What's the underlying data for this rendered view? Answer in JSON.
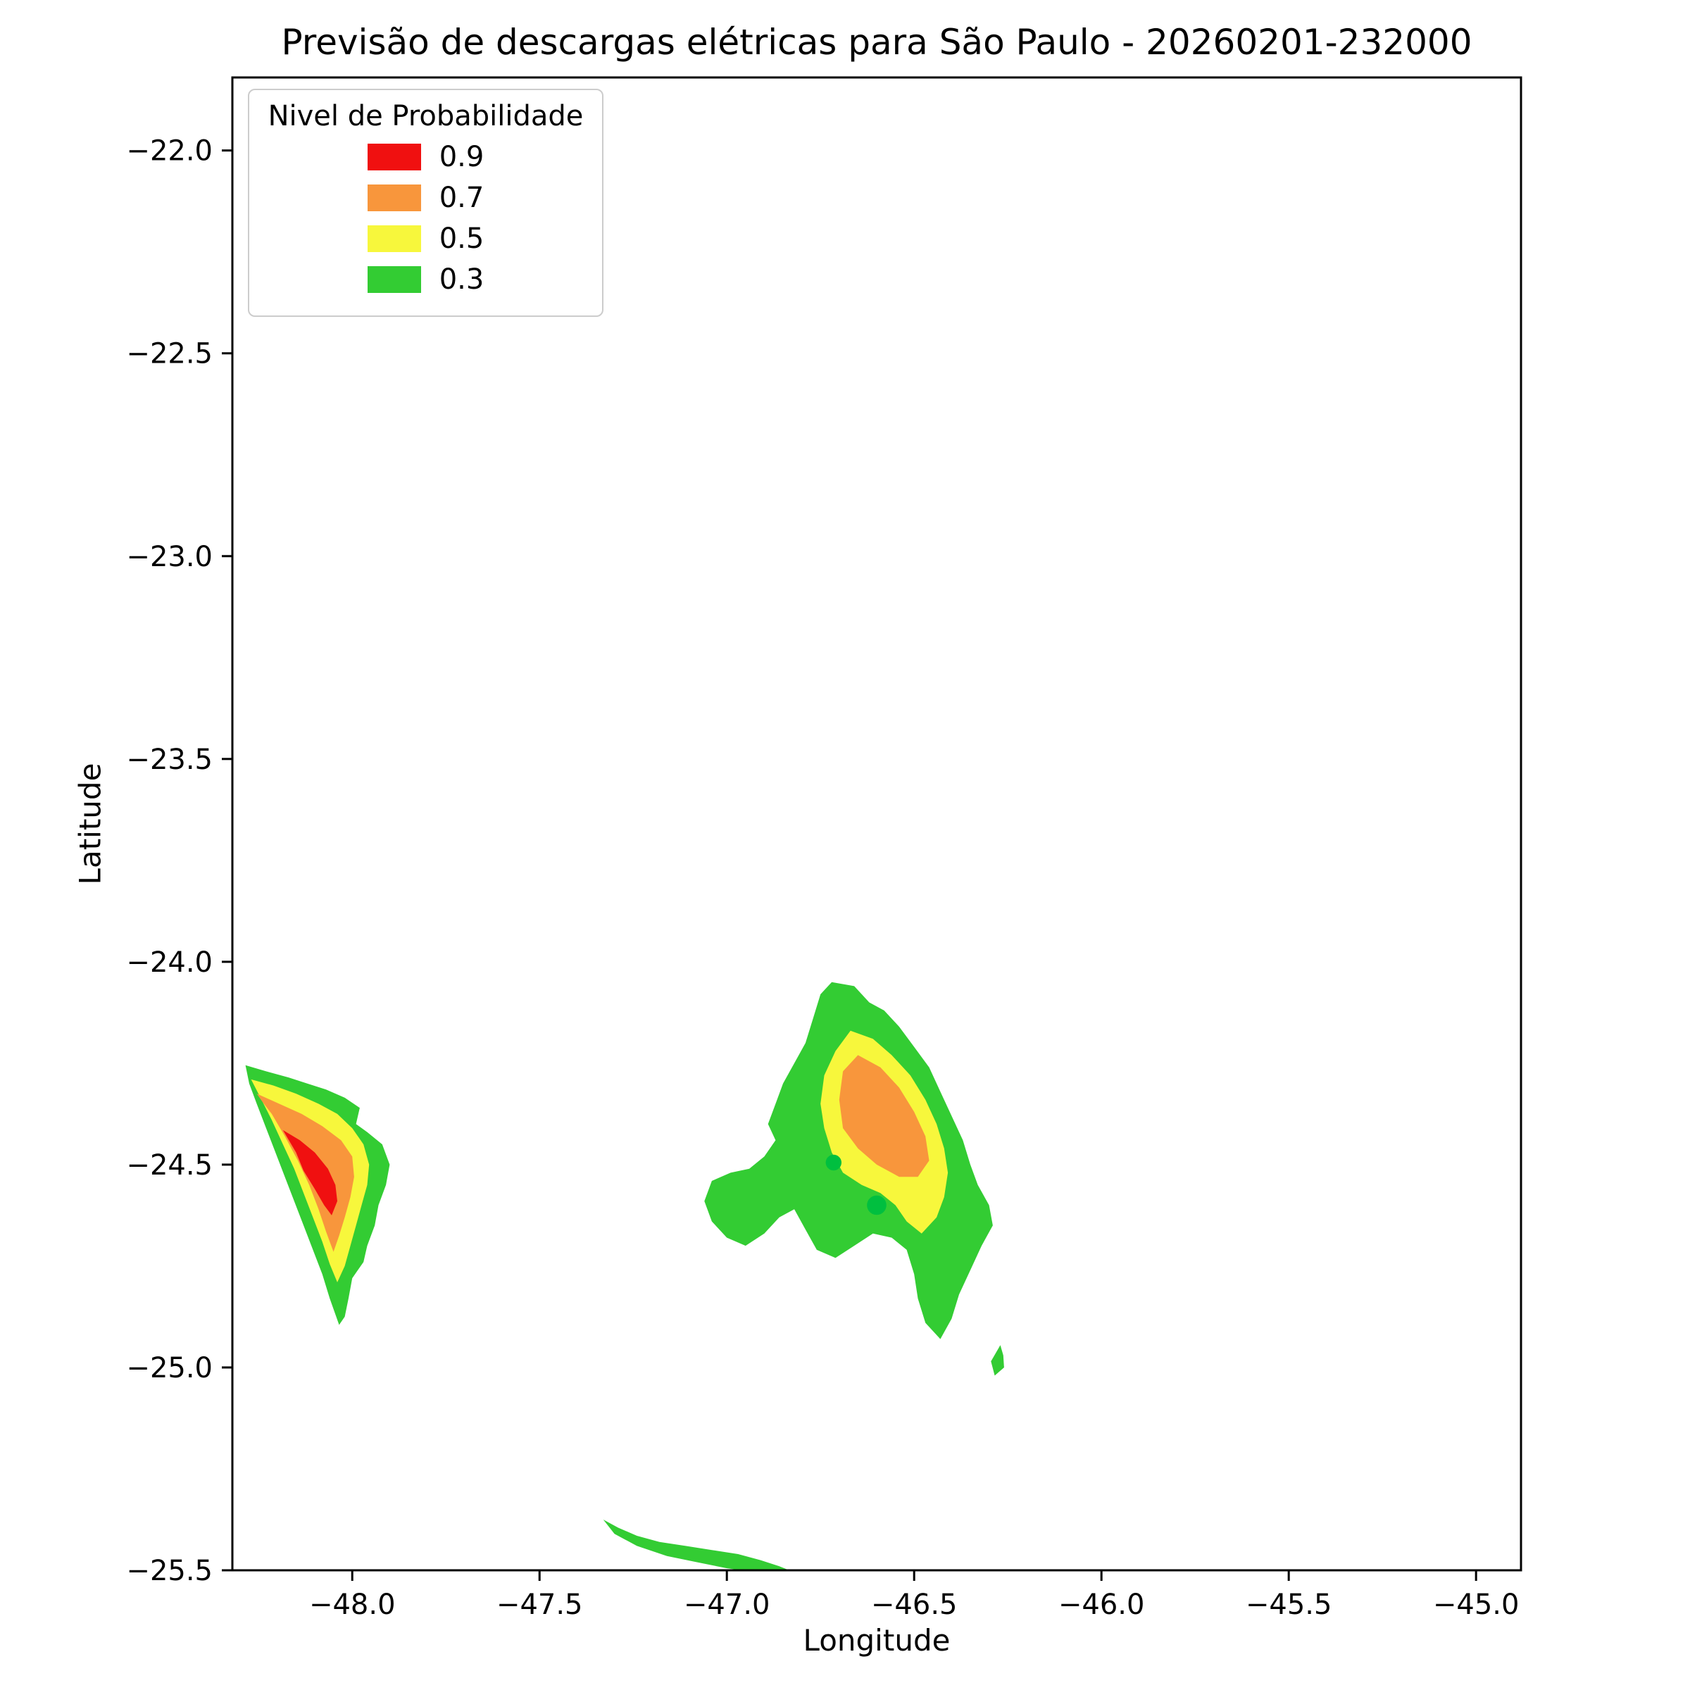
{
  "figure": {
    "title": "Previsão de descargas elétricas para São Paulo - 20260201-232000",
    "xlabel": "Longitude",
    "ylabel": "Latitude"
  },
  "legend": {
    "title": "Nivel de Probabilidade",
    "entries": [
      {
        "label": "0.9",
        "color": "#f01010"
      },
      {
        "label": "0.7",
        "color": "#f8963c"
      },
      {
        "label": "0.5",
        "color": "#f7f73c"
      },
      {
        "label": "0.3",
        "color": "#33cc33"
      }
    ]
  },
  "chart_data": {
    "type": "area",
    "subtype": "filled-contour-probability-map",
    "title": "Previsão de descargas elétricas para São Paulo - 20260201-232000",
    "xlabel": "Longitude",
    "ylabel": "Latitude",
    "xlim": [
      -48.32,
      -44.88
    ],
    "ylim": [
      -25.5,
      -21.82
    ],
    "xticks": [
      -48.0,
      -47.5,
      -47.0,
      -46.5,
      -46.0,
      -45.5,
      -45.0
    ],
    "yticks": [
      -22.0,
      -22.5,
      -23.0,
      -23.5,
      -24.0,
      -24.5,
      -25.0,
      -25.5
    ],
    "grid": false,
    "legend_position": "upper left",
    "levels": [
      0.3,
      0.5,
      0.7,
      0.9
    ],
    "contours": [
      {
        "level": 0.3,
        "color": "#33cc33",
        "polygons": [
          [
            [
              -48.285,
              -24.255
            ],
            [
              -48.23,
              -24.27
            ],
            [
              -48.17,
              -24.285
            ],
            [
              -48.12,
              -24.3
            ],
            [
              -48.07,
              -24.315
            ],
            [
              -48.02,
              -24.335
            ],
            [
              -47.98,
              -24.36
            ],
            [
              -47.99,
              -24.4
            ],
            [
              -47.96,
              -24.42
            ],
            [
              -47.92,
              -24.45
            ],
            [
              -47.9,
              -24.5
            ],
            [
              -47.91,
              -24.55
            ],
            [
              -47.93,
              -24.6
            ],
            [
              -47.94,
              -24.65
            ],
            [
              -47.96,
              -24.7
            ],
            [
              -47.97,
              -24.74
            ],
            [
              -48.0,
              -24.78
            ],
            [
              -48.01,
              -24.83
            ],
            [
              -48.02,
              -24.875
            ],
            [
              -48.035,
              -24.895
            ],
            [
              -48.06,
              -24.83
            ],
            [
              -48.08,
              -24.77
            ],
            [
              -48.105,
              -24.71
            ],
            [
              -48.13,
              -24.65
            ],
            [
              -48.155,
              -24.59
            ],
            [
              -48.18,
              -24.53
            ],
            [
              -48.205,
              -24.47
            ],
            [
              -48.23,
              -24.41
            ],
            [
              -48.255,
              -24.35
            ],
            [
              -48.275,
              -24.3
            ]
          ],
          [
            [
              -46.72,
              -24.05
            ],
            [
              -46.66,
              -24.06
            ],
            [
              -46.62,
              -24.1
            ],
            [
              -46.58,
              -24.12
            ],
            [
              -46.54,
              -24.16
            ],
            [
              -46.5,
              -24.21
            ],
            [
              -46.46,
              -24.26
            ],
            [
              -46.43,
              -24.32
            ],
            [
              -46.4,
              -24.38
            ],
            [
              -46.37,
              -24.44
            ],
            [
              -46.35,
              -24.5
            ],
            [
              -46.33,
              -24.55
            ],
            [
              -46.3,
              -24.6
            ],
            [
              -46.29,
              -24.65
            ],
            [
              -46.32,
              -24.7
            ],
            [
              -46.35,
              -24.76
            ],
            [
              -46.38,
              -24.82
            ],
            [
              -46.4,
              -24.88
            ],
            [
              -46.43,
              -24.93
            ],
            [
              -46.47,
              -24.89
            ],
            [
              -46.49,
              -24.83
            ],
            [
              -46.5,
              -24.77
            ],
            [
              -46.52,
              -24.71
            ],
            [
              -46.56,
              -24.68
            ],
            [
              -46.61,
              -24.67
            ],
            [
              -46.66,
              -24.7
            ],
            [
              -46.71,
              -24.73
            ],
            [
              -46.76,
              -24.71
            ],
            [
              -46.79,
              -24.66
            ],
            [
              -46.82,
              -24.61
            ],
            [
              -46.86,
              -24.63
            ],
            [
              -46.9,
              -24.67
            ],
            [
              -46.95,
              -24.7
            ],
            [
              -47.0,
              -24.68
            ],
            [
              -47.04,
              -24.64
            ],
            [
              -47.06,
              -24.59
            ],
            [
              -47.04,
              -24.54
            ],
            [
              -46.99,
              -24.52
            ],
            [
              -46.94,
              -24.51
            ],
            [
              -46.9,
              -24.48
            ],
            [
              -46.87,
              -24.44
            ],
            [
              -46.89,
              -24.4
            ],
            [
              -46.87,
              -24.35
            ],
            [
              -46.85,
              -24.3
            ],
            [
              -46.82,
              -24.25
            ],
            [
              -46.79,
              -24.2
            ],
            [
              -46.77,
              -24.14
            ],
            [
              -46.75,
              -24.08
            ]
          ],
          [
            [
              -47.33,
              -25.375
            ],
            [
              -47.29,
              -25.395
            ],
            [
              -47.24,
              -25.415
            ],
            [
              -47.18,
              -25.43
            ],
            [
              -47.11,
              -25.44
            ],
            [
              -47.04,
              -25.45
            ],
            [
              -46.97,
              -25.46
            ],
            [
              -46.91,
              -25.475
            ],
            [
              -46.86,
              -25.49
            ],
            [
              -46.82,
              -25.505
            ],
            [
              -46.92,
              -25.505
            ],
            [
              -47.0,
              -25.495
            ],
            [
              -47.08,
              -25.48
            ],
            [
              -47.16,
              -25.465
            ],
            [
              -47.24,
              -25.44
            ],
            [
              -47.3,
              -25.41
            ]
          ],
          [
            [
              -46.27,
              -24.945
            ],
            [
              -46.295,
              -24.985
            ],
            [
              -46.285,
              -25.02
            ],
            [
              -46.26,
              -25.0
            ],
            [
              -46.262,
              -24.97
            ]
          ]
        ]
      },
      {
        "level": 0.5,
        "color": "#f7f73c",
        "polygons": [
          [
            [
              -48.27,
              -24.29
            ],
            [
              -48.21,
              -24.305
            ],
            [
              -48.15,
              -24.325
            ],
            [
              -48.09,
              -24.35
            ],
            [
              -48.04,
              -24.375
            ],
            [
              -48.0,
              -24.41
            ],
            [
              -47.97,
              -24.45
            ],
            [
              -47.955,
              -24.5
            ],
            [
              -47.96,
              -24.55
            ],
            [
              -47.975,
              -24.6
            ],
            [
              -47.99,
              -24.65
            ],
            [
              -48.005,
              -24.7
            ],
            [
              -48.02,
              -24.75
            ],
            [
              -48.04,
              -24.79
            ],
            [
              -48.06,
              -24.745
            ],
            [
              -48.08,
              -24.69
            ],
            [
              -48.105,
              -24.63
            ],
            [
              -48.13,
              -24.57
            ],
            [
              -48.155,
              -24.51
            ],
            [
              -48.185,
              -24.45
            ],
            [
              -48.215,
              -24.39
            ],
            [
              -48.245,
              -24.335
            ]
          ],
          [
            [
              -46.67,
              -24.17
            ],
            [
              -46.61,
              -24.19
            ],
            [
              -46.56,
              -24.23
            ],
            [
              -46.51,
              -24.28
            ],
            [
              -46.47,
              -24.34
            ],
            [
              -46.44,
              -24.4
            ],
            [
              -46.42,
              -24.46
            ],
            [
              -46.41,
              -24.52
            ],
            [
              -46.42,
              -24.58
            ],
            [
              -46.44,
              -24.63
            ],
            [
              -46.48,
              -24.67
            ],
            [
              -46.52,
              -24.64
            ],
            [
              -46.55,
              -24.6
            ],
            [
              -46.59,
              -24.57
            ],
            [
              -46.64,
              -24.55
            ],
            [
              -46.69,
              -24.52
            ],
            [
              -46.72,
              -24.47
            ],
            [
              -46.74,
              -24.41
            ],
            [
              -46.75,
              -24.35
            ],
            [
              -46.74,
              -24.28
            ],
            [
              -46.71,
              -24.22
            ]
          ]
        ]
      },
      {
        "level": 0.7,
        "color": "#f8963c",
        "polygons": [
          [
            [
              -48.255,
              -24.325
            ],
            [
              -48.195,
              -24.35
            ],
            [
              -48.135,
              -24.375
            ],
            [
              -48.08,
              -24.405
            ],
            [
              -48.03,
              -24.44
            ],
            [
              -48.0,
              -24.48
            ],
            [
              -47.995,
              -24.53
            ],
            [
              -48.005,
              -24.58
            ],
            [
              -48.02,
              -24.63
            ],
            [
              -48.035,
              -24.675
            ],
            [
              -48.05,
              -24.715
            ],
            [
              -48.07,
              -24.665
            ],
            [
              -48.09,
              -24.61
            ],
            [
              -48.115,
              -24.55
            ],
            [
              -48.145,
              -24.49
            ],
            [
              -48.18,
              -24.43
            ],
            [
              -48.215,
              -24.375
            ],
            [
              -48.24,
              -24.345
            ]
          ],
          [
            [
              -46.65,
              -24.23
            ],
            [
              -46.59,
              -24.26
            ],
            [
              -46.54,
              -24.31
            ],
            [
              -46.5,
              -24.37
            ],
            [
              -46.47,
              -24.43
            ],
            [
              -46.46,
              -24.49
            ],
            [
              -46.49,
              -24.53
            ],
            [
              -46.54,
              -24.53
            ],
            [
              -46.6,
              -24.5
            ],
            [
              -46.65,
              -24.46
            ],
            [
              -46.69,
              -24.41
            ],
            [
              -46.7,
              -24.34
            ],
            [
              -46.69,
              -24.27
            ]
          ]
        ]
      },
      {
        "level": 0.9,
        "color": "#f01010",
        "polygons": [
          [
            [
              -48.185,
              -24.415
            ],
            [
              -48.14,
              -24.44
            ],
            [
              -48.1,
              -24.47
            ],
            [
              -48.065,
              -24.51
            ],
            [
              -48.045,
              -24.55
            ],
            [
              -48.04,
              -24.59
            ],
            [
              -48.055,
              -24.625
            ],
            [
              -48.075,
              -24.6
            ],
            [
              -48.1,
              -24.56
            ],
            [
              -48.13,
              -24.515
            ],
            [
              -48.15,
              -24.47
            ]
          ]
        ]
      }
    ],
    "markers": [
      {
        "x": -46.715,
        "y": -24.495,
        "r": 0.021,
        "color": "#00bf3f"
      },
      {
        "x": -46.6,
        "y": -24.6,
        "r": 0.026,
        "color": "#00bf3f"
      }
    ]
  }
}
